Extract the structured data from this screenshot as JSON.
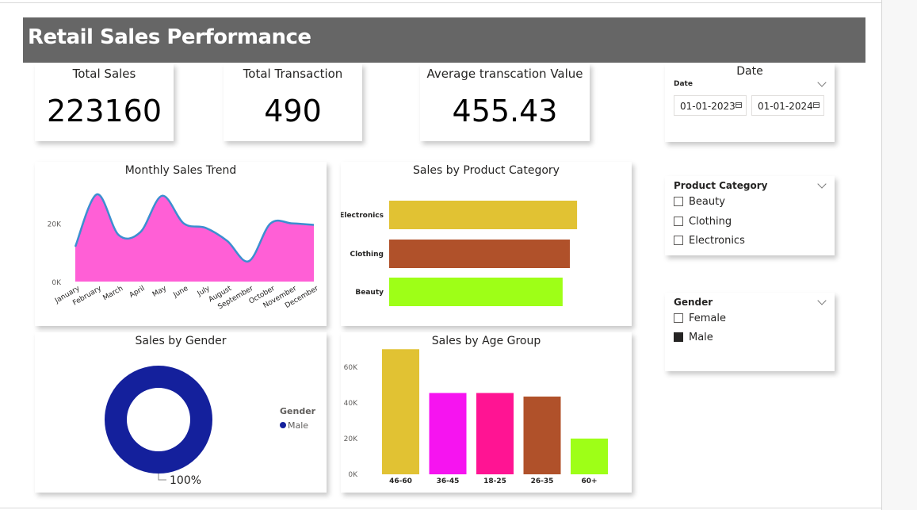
{
  "header": {
    "title": "Retail Sales Performance"
  },
  "kpis": [
    {
      "label": "Total Sales",
      "value": "223160"
    },
    {
      "label": "Total Transaction",
      "value": "490"
    },
    {
      "label": "Average transcation Value",
      "value": "455.43"
    }
  ],
  "date_slicer": {
    "title": "Date",
    "label": "Date",
    "start": "01-01-2023",
    "end": "01-01-2024"
  },
  "category_slicer": {
    "title": "Product Category",
    "options": [
      "Beauty",
      "Clothing",
      "Electronics"
    ]
  },
  "gender_slicer": {
    "title": "Gender",
    "options": [
      "Female",
      "Male"
    ],
    "checked": [
      false,
      true
    ]
  },
  "colors": {
    "header_bg": "#666666",
    "area_fill": "#ff5fd6",
    "area_line": "#3c8fd0",
    "donut": "#14209c"
  },
  "chart_data": [
    {
      "type": "area",
      "title": "Monthly Sales Trend",
      "categories": [
        "January",
        "February",
        "March",
        "April",
        "May",
        "June",
        "July",
        "August",
        "September",
        "October",
        "November",
        "December"
      ],
      "values": [
        12000,
        30000,
        16000,
        17000,
        29500,
        20000,
        18500,
        14000,
        7000,
        20000,
        20000,
        19500
      ],
      "yticks": [
        "0K",
        "20K"
      ],
      "ylim": [
        0,
        33000
      ],
      "grid": false
    },
    {
      "type": "bar",
      "orientation": "horizontal",
      "title": "Sales by Product Category",
      "categories": [
        "Electronics",
        "Clothing",
        "Beauty"
      ],
      "values": [
        78000,
        75000,
        72000
      ],
      "colors": [
        "#e1c233",
        "#b0512a",
        "#9eff17"
      ],
      "xlim": [
        0,
        80000
      ]
    },
    {
      "type": "pie",
      "title": "Sales by Gender",
      "legend_title": "Gender",
      "categories": [
        "Male"
      ],
      "values": [
        100
      ],
      "data_label": "100%",
      "legend": "right"
    },
    {
      "type": "bar",
      "title": "Sales by Age Group",
      "categories": [
        "46-60",
        "36-45",
        "18-25",
        "26-35",
        "60+"
      ],
      "values": [
        70000,
        45500,
        45500,
        43500,
        20000
      ],
      "colors": [
        "#e1c233",
        "#f614f0",
        "#ff1493",
        "#b0512a",
        "#9eff17"
      ],
      "yticks": [
        "0K",
        "20K",
        "40K",
        "60K"
      ],
      "ylim": [
        0,
        75000
      ]
    }
  ]
}
